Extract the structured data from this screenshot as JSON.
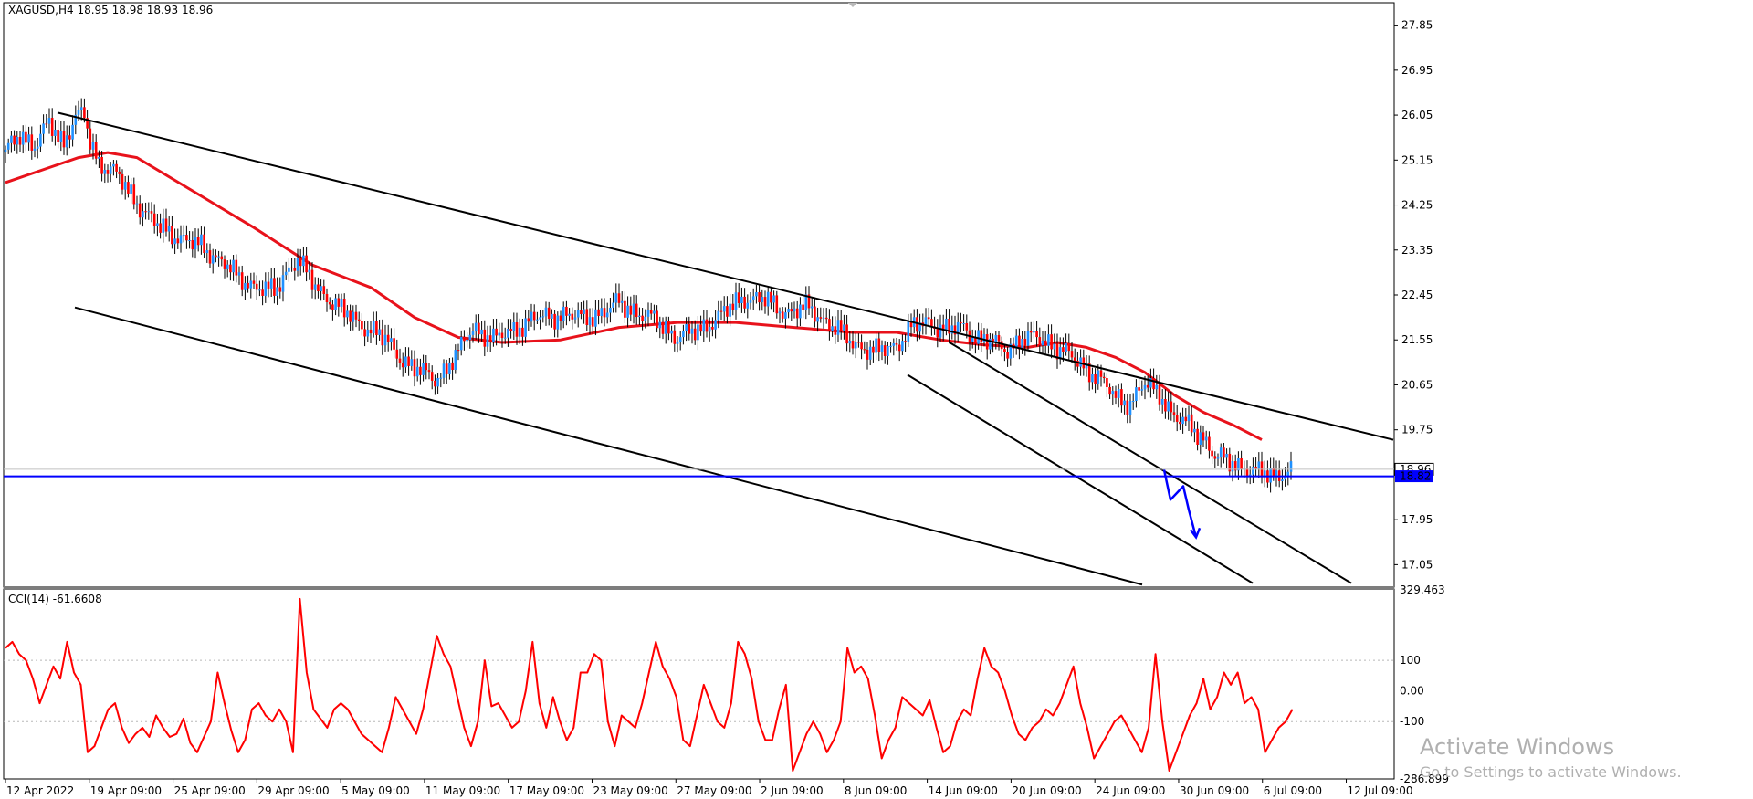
{
  "chart_data": [
    {
      "type": "candlestick",
      "symbol_line": "XAGUSD,H4  18.95 18.98 18.93 18.96",
      "ylim": [
        16.6,
        28.3
      ],
      "y_ticks": [
        "27.85",
        "26.95",
        "26.05",
        "25.15",
        "24.25",
        "23.35",
        "22.45",
        "21.55",
        "20.65",
        "19.75",
        "17.95",
        "17.05"
      ],
      "price_marks": {
        "bid": "18.96",
        "line_level": "18.82"
      },
      "x_labels": [
        "12 Apr 2022",
        "19 Apr 09:00",
        "25 Apr 09:00",
        "29 Apr 09:00",
        "5 May 09:00",
        "11 May 09:00",
        "17 May 09:00",
        "23 May 09:00",
        "27 May 09:00",
        "2 Jun 09:00",
        "8 Jun 09:00",
        "14 Jun 09:00",
        "20 Jun 09:00",
        "24 Jun 09:00",
        "30 Jun 09:00",
        "6 Jul 09:00",
        "12 Jul 09:00"
      ],
      "close_path": [
        [
          0,
          25.3
        ],
        [
          10,
          25.7
        ],
        [
          20,
          25.4
        ],
        [
          30,
          25.9
        ],
        [
          40,
          25.5
        ],
        [
          48,
          26.0
        ],
        [
          54,
          26.05
        ],
        [
          57,
          25.6
        ],
        [
          64,
          25.1
        ],
        [
          75,
          24.9
        ],
        [
          90,
          24.3
        ],
        [
          105,
          23.8
        ],
        [
          120,
          23.6
        ],
        [
          135,
          23.4
        ],
        [
          150,
          23.1
        ],
        [
          160,
          22.75
        ],
        [
          175,
          22.6
        ],
        [
          185,
          22.5
        ],
        [
          192,
          22.9
        ],
        [
          200,
          23.2
        ],
        [
          212,
          22.6
        ],
        [
          225,
          22.3
        ],
        [
          240,
          21.9
        ],
        [
          255,
          21.7
        ],
        [
          270,
          21.2
        ],
        [
          285,
          20.9
        ],
        [
          295,
          20.75
        ],
        [
          310,
          21.3
        ],
        [
          320,
          21.8
        ],
        [
          335,
          21.55
        ],
        [
          350,
          21.8
        ],
        [
          365,
          22.0
        ],
        [
          380,
          22.05
        ],
        [
          395,
          22.0
        ],
        [
          410,
          22.1
        ],
        [
          420,
          22.3
        ],
        [
          435,
          22.05
        ],
        [
          445,
          21.95
        ],
        [
          460,
          21.6
        ],
        [
          475,
          21.75
        ],
        [
          490,
          22.05
        ],
        [
          505,
          22.4
        ],
        [
          520,
          22.35
        ],
        [
          535,
          22.1
        ],
        [
          550,
          22.2
        ],
        [
          565,
          21.85
        ],
        [
          580,
          21.5
        ],
        [
          595,
          21.3
        ],
        [
          610,
          21.45
        ],
        [
          620,
          21.8
        ],
        [
          632,
          21.9
        ],
        [
          645,
          21.75
        ],
        [
          655,
          21.8
        ],
        [
          665,
          21.6
        ],
        [
          675,
          21.5
        ],
        [
          685,
          21.35
        ],
        [
          695,
          21.55
        ],
        [
          705,
          21.6
        ],
        [
          715,
          21.5
        ],
        [
          725,
          21.3
        ],
        [
          735,
          21.1
        ],
        [
          748,
          20.8
        ],
        [
          760,
          20.4
        ],
        [
          770,
          20.3
        ],
        [
          780,
          20.65
        ],
        [
          790,
          20.5
        ],
        [
          800,
          20.0
        ],
        [
          812,
          19.8
        ],
        [
          820,
          19.6
        ],
        [
          828,
          19.2
        ],
        [
          840,
          19.1
        ],
        [
          855,
          18.9
        ],
        [
          870,
          18.85
        ],
        [
          881,
          18.93
        ]
      ],
      "moving_average": [
        [
          0,
          24.7
        ],
        [
          30,
          25.0
        ],
        [
          50,
          25.2
        ],
        [
          70,
          25.3
        ],
        [
          90,
          25.2
        ],
        [
          130,
          24.5
        ],
        [
          170,
          23.8
        ],
        [
          210,
          23.05
        ],
        [
          250,
          22.6
        ],
        [
          280,
          22.0
        ],
        [
          310,
          21.6
        ],
        [
          340,
          21.5
        ],
        [
          380,
          21.55
        ],
        [
          420,
          21.8
        ],
        [
          460,
          21.9
        ],
        [
          500,
          21.9
        ],
        [
          540,
          21.8
        ],
        [
          580,
          21.7
        ],
        [
          610,
          21.7
        ],
        [
          640,
          21.55
        ],
        [
          670,
          21.45
        ],
        [
          700,
          21.4
        ],
        [
          720,
          21.5
        ],
        [
          740,
          21.4
        ],
        [
          760,
          21.2
        ],
        [
          780,
          20.9
        ],
        [
          800,
          20.45
        ],
        [
          820,
          20.1
        ],
        [
          840,
          19.85
        ],
        [
          860,
          19.55
        ]
      ],
      "annotation_lines": [
        [
          [
            63,
            26.1
          ],
          [
            1526,
            19.55
          ]
        ],
        [
          [
            82,
            22.2
          ],
          [
            1251,
            16.65
          ]
        ],
        [
          [
            1040,
            21.5
          ],
          [
            1480,
            16.68
          ]
        ],
        [
          [
            994,
            20.85
          ],
          [
            1372,
            16.68
          ]
        ]
      ],
      "projection_path": [
        [
          1275,
          18.95
        ],
        [
          1282,
          18.35
        ],
        [
          1296,
          18.62
        ],
        [
          1302,
          18.15
        ],
        [
          1310,
          17.6
        ]
      ]
    },
    {
      "type": "line",
      "label": "CCI(14) -61.6608",
      "ylim": [
        -286.899,
        329.463
      ],
      "y_ticks": [
        "329.463",
        "100",
        "0.00",
        "-100",
        "-286.899"
      ],
      "levels": [
        100,
        -100
      ],
      "series": [
        {
          "values": [
            140,
            160,
            120,
            100,
            40,
            -40,
            20,
            80,
            40,
            160,
            60,
            20,
            -200,
            -180,
            -120,
            -60,
            -40,
            -120,
            -170,
            -140,
            -120,
            -150,
            -80,
            -120,
            -150,
            -140,
            -90,
            -170,
            -200,
            -150,
            -100,
            60,
            -40,
            -130,
            -200,
            -160,
            -60,
            -40,
            -80,
            -100,
            -60,
            -100,
            -200,
            300,
            60,
            -60,
            -90,
            -120,
            -60,
            -40,
            -60,
            -100,
            -140,
            -160,
            -180,
            -200,
            -120,
            -20,
            -60,
            -100,
            -140,
            -60,
            60,
            180,
            120,
            80,
            -20,
            -120,
            -180,
            -100,
            100,
            -50,
            -40,
            -80,
            -120,
            -100,
            0,
            160,
            -40,
            -120,
            -20,
            -100,
            -160,
            -120,
            60,
            60,
            120,
            100,
            -100,
            -180,
            -80,
            -100,
            -120,
            -40,
            60,
            160,
            80,
            40,
            -20,
            -160,
            -180,
            -80,
            20,
            -40,
            -100,
            -120,
            -40,
            160,
            120,
            40,
            -100,
            -160,
            -160,
            -60,
            20,
            -260,
            -200,
            -140,
            -100,
            -140,
            -200,
            -160,
            -100,
            140,
            60,
            80,
            40,
            -80,
            -220,
            -160,
            -120,
            -20,
            -40,
            -60,
            -80,
            -30,
            -120,
            -200,
            -180,
            -100,
            -60,
            -80,
            40,
            140,
            80,
            60,
            0,
            -80,
            -140,
            -160,
            -120,
            -100,
            -60,
            -80,
            -40,
            20,
            80,
            -40,
            -120,
            -220,
            -180,
            -140,
            -100,
            -80,
            -120,
            -160,
            -200,
            -120,
            120,
            -100,
            -260,
            -200,
            -140,
            -80,
            -40,
            40,
            -60,
            -20,
            60,
            20,
            60,
            -40,
            -20,
            -60,
            -200,
            -160,
            -120,
            -100,
            -60
          ]
        }
      ]
    }
  ],
  "watermark": {
    "title": "Activate Windows",
    "subtitle": "Go to Settings to activate Windows."
  },
  "colors": {
    "bull": "#1e90ff",
    "bear": "#ff0000",
    "wick": "#000000",
    "ma": "#e8121b",
    "cci": "#ff0000",
    "hline": "#0000ff",
    "proj": "#0000ff"
  }
}
